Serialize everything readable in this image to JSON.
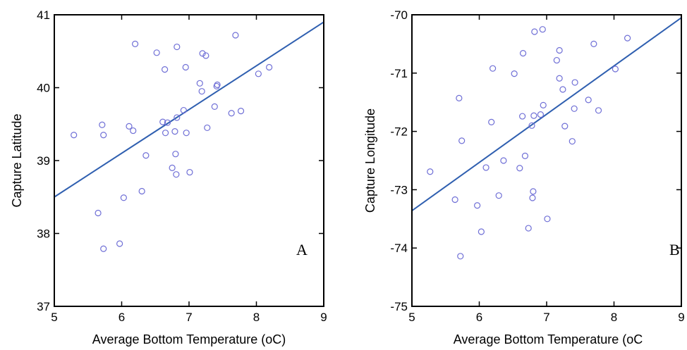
{
  "chart_data": [
    {
      "type": "scatter",
      "panel_label": "A",
      "xlabel": "Average Bottom Temperature (oC)",
      "ylabel": "Capture Latitude",
      "xlim": [
        5,
        9
      ],
      "ylim": [
        37,
        41
      ],
      "xticks": [
        "5",
        "6",
        "7",
        "8",
        "9"
      ],
      "yticks": [
        "37",
        "38",
        "39",
        "40",
        "41"
      ],
      "colors": {
        "points": "#6f6fd6",
        "fit_line": "#2f5fb0"
      },
      "fit_line": {
        "x": [
          5,
          9
        ],
        "y": [
          38.5,
          40.9
        ]
      },
      "points": [
        {
          "x": 5.29,
          "y": 39.35
        },
        {
          "x": 5.65,
          "y": 38.28
        },
        {
          "x": 5.71,
          "y": 39.49
        },
        {
          "x": 5.73,
          "y": 39.35
        },
        {
          "x": 5.73,
          "y": 37.79
        },
        {
          "x": 5.97,
          "y": 37.86
        },
        {
          "x": 6.03,
          "y": 38.49
        },
        {
          "x": 6.11,
          "y": 39.47
        },
        {
          "x": 6.17,
          "y": 39.41
        },
        {
          "x": 6.2,
          "y": 40.6
        },
        {
          "x": 6.3,
          "y": 38.58
        },
        {
          "x": 6.36,
          "y": 39.07
        },
        {
          "x": 6.52,
          "y": 40.48
        },
        {
          "x": 6.61,
          "y": 39.53
        },
        {
          "x": 6.64,
          "y": 40.25
        },
        {
          "x": 6.65,
          "y": 39.38
        },
        {
          "x": 6.68,
          "y": 39.52
        },
        {
          "x": 6.75,
          "y": 38.9
        },
        {
          "x": 6.79,
          "y": 39.4
        },
        {
          "x": 6.8,
          "y": 39.09
        },
        {
          "x": 6.81,
          "y": 38.81
        },
        {
          "x": 6.82,
          "y": 39.59
        },
        {
          "x": 6.82,
          "y": 40.56
        },
        {
          "x": 6.92,
          "y": 39.69
        },
        {
          "x": 6.95,
          "y": 40.28
        },
        {
          "x": 6.96,
          "y": 39.38
        },
        {
          "x": 7.01,
          "y": 38.84
        },
        {
          "x": 7.16,
          "y": 40.06
        },
        {
          "x": 7.19,
          "y": 39.95
        },
        {
          "x": 7.2,
          "y": 40.47
        },
        {
          "x": 7.25,
          "y": 40.44
        },
        {
          "x": 7.27,
          "y": 39.45
        },
        {
          "x": 7.38,
          "y": 39.74
        },
        {
          "x": 7.41,
          "y": 40.02
        },
        {
          "x": 7.42,
          "y": 40.04
        },
        {
          "x": 7.63,
          "y": 39.65
        },
        {
          "x": 7.69,
          "y": 40.72
        },
        {
          "x": 7.77,
          "y": 39.68
        },
        {
          "x": 8.03,
          "y": 40.19
        },
        {
          "x": 8.19,
          "y": 40.28
        }
      ]
    },
    {
      "type": "scatter",
      "panel_label": "B",
      "xlabel": "Average Bottom Temperature (oC",
      "ylabel": "Capture Longitude",
      "xlim": [
        5,
        9
      ],
      "ylim": [
        -75,
        -70
      ],
      "xticks": [
        "5",
        "6",
        "7",
        "8",
        "9"
      ],
      "yticks": [
        "-75",
        "-74",
        "-73",
        "-72",
        "-71",
        "-70"
      ],
      "colors": {
        "points": "#6f6fd6",
        "fit_line": "#2f5fb0"
      },
      "fit_line": {
        "x": [
          5,
          9
        ],
        "y": [
          -73.36,
          -70.05
        ]
      },
      "points": [
        {
          "x": 5.27,
          "y": -72.69
        },
        {
          "x": 5.64,
          "y": -73.17
        },
        {
          "x": 5.7,
          "y": -71.43
        },
        {
          "x": 5.72,
          "y": -74.14
        },
        {
          "x": 5.74,
          "y": -72.16
        },
        {
          "x": 5.97,
          "y": -73.27
        },
        {
          "x": 6.03,
          "y": -73.72
        },
        {
          "x": 6.1,
          "y": -72.62
        },
        {
          "x": 6.18,
          "y": -71.84
        },
        {
          "x": 6.2,
          "y": -70.92
        },
        {
          "x": 6.29,
          "y": -73.1
        },
        {
          "x": 6.36,
          "y": -72.5
        },
        {
          "x": 6.52,
          "y": -71.01
        },
        {
          "x": 6.6,
          "y": -72.63
        },
        {
          "x": 6.64,
          "y": -71.74
        },
        {
          "x": 6.65,
          "y": -70.66
        },
        {
          "x": 6.68,
          "y": -72.42
        },
        {
          "x": 6.73,
          "y": -73.66
        },
        {
          "x": 6.78,
          "y": -71.9
        },
        {
          "x": 6.79,
          "y": -73.14
        },
        {
          "x": 6.8,
          "y": -73.03
        },
        {
          "x": 6.81,
          "y": -71.73
        },
        {
          "x": 6.82,
          "y": -70.29
        },
        {
          "x": 6.91,
          "y": -71.71
        },
        {
          "x": 6.94,
          "y": -70.25
        },
        {
          "x": 6.95,
          "y": -71.55
        },
        {
          "x": 7.01,
          "y": -73.5
        },
        {
          "x": 7.15,
          "y": -70.78
        },
        {
          "x": 7.19,
          "y": -71.09
        },
        {
          "x": 7.19,
          "y": -70.61
        },
        {
          "x": 7.24,
          "y": -71.28
        },
        {
          "x": 7.27,
          "y": -71.91
        },
        {
          "x": 7.38,
          "y": -72.17
        },
        {
          "x": 7.41,
          "y": -71.61
        },
        {
          "x": 7.42,
          "y": -71.16
        },
        {
          "x": 7.62,
          "y": -71.46
        },
        {
          "x": 7.7,
          "y": -70.5
        },
        {
          "x": 7.77,
          "y": -71.64
        },
        {
          "x": 8.02,
          "y": -70.93
        },
        {
          "x": 8.2,
          "y": -70.4
        }
      ]
    }
  ]
}
